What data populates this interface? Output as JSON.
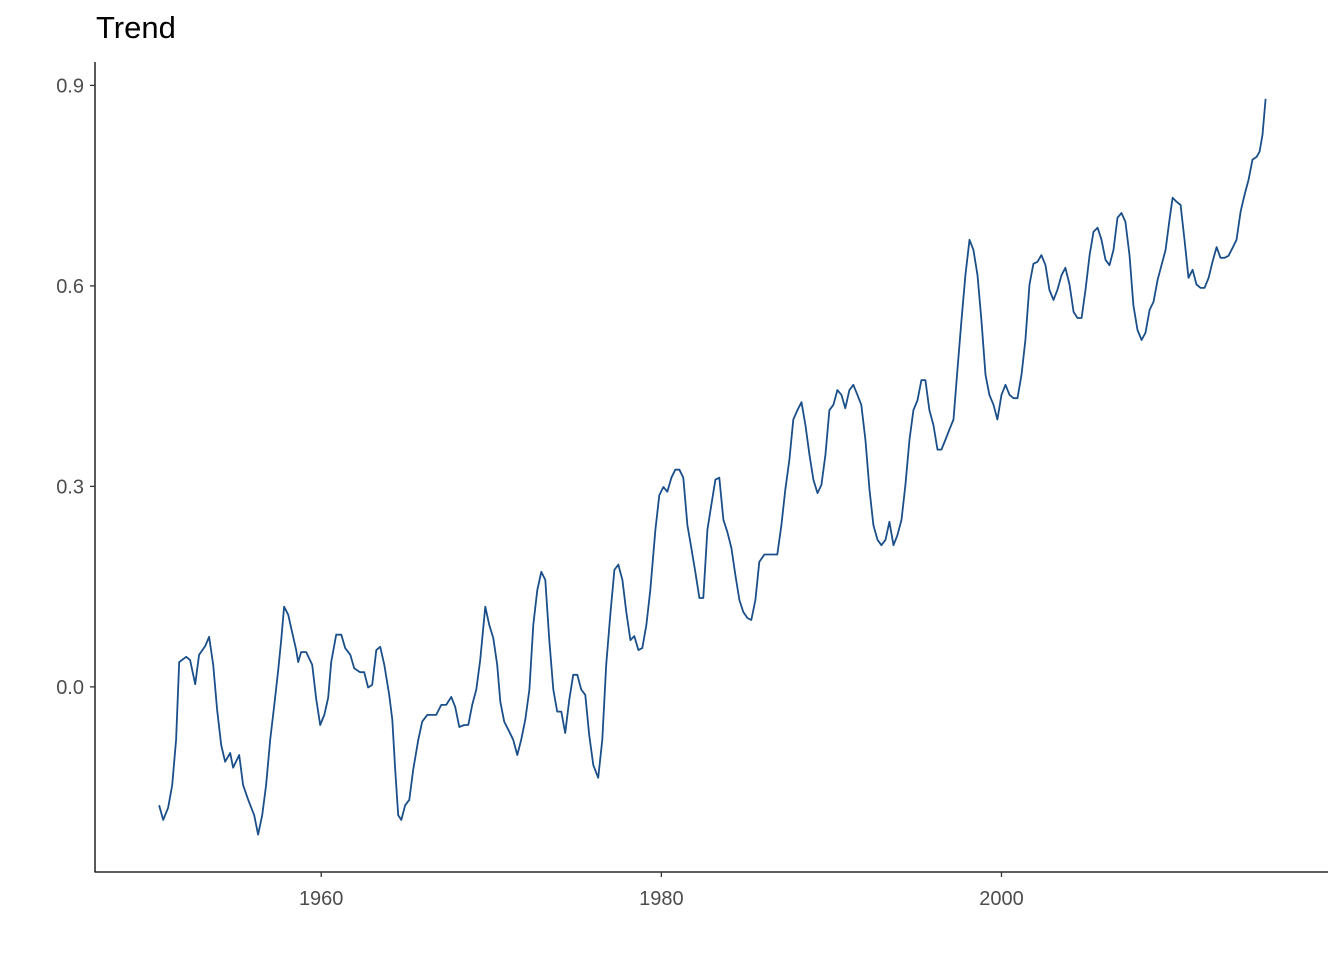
{
  "chart_data": {
    "type": "line",
    "title": "Trend",
    "xlabel": "",
    "ylabel": "",
    "xlim": [
      1946.7,
      2019.2
    ],
    "ylim": [
      -0.277,
      0.935
    ],
    "grid": false,
    "line_color": "#1a4f8a",
    "x_ticks": [
      1960,
      1980,
      2000
    ],
    "x_tick_labels": [
      "1960",
      "1980",
      "2000"
    ],
    "y_ticks": [
      0.0,
      0.3,
      0.6,
      0.9
    ],
    "y_tick_labels": [
      "0.0",
      "0.3",
      "0.6",
      "0.9"
    ],
    "series": [
      {
        "x": [
          1950.47,
          1950.71,
          1951.0,
          1951.24,
          1951.47,
          1951.65,
          1952.06,
          1952.29,
          1952.59,
          1952.82,
          1953.18,
          1953.41,
          1953.65,
          1953.88,
          1954.12,
          1954.35,
          1954.65,
          1954.82,
          1955.18,
          1955.41,
          1955.71,
          1956.06,
          1956.29,
          1956.53,
          1956.76,
          1957.0,
          1957.24,
          1957.47,
          1957.65,
          1957.82,
          1958.06,
          1958.29,
          1958.53,
          1958.65,
          1958.82,
          1959.12,
          1959.47,
          1959.71,
          1959.94,
          1960.18,
          1960.41,
          1960.59,
          1960.88,
          1961.18,
          1961.41,
          1961.71,
          1961.94,
          1962.29,
          1962.53,
          1962.76,
          1963.0,
          1963.24,
          1963.47,
          1963.71,
          1964.0,
          1964.18,
          1964.35,
          1964.53,
          1964.71,
          1964.94,
          1965.18,
          1965.41,
          1965.71,
          1965.94,
          1966.24,
          1966.47,
          1966.76,
          1967.06,
          1967.35,
          1967.65,
          1967.88,
          1968.12,
          1968.41,
          1968.65,
          1968.88,
          1969.12,
          1969.35,
          1969.65,
          1969.88,
          1970.12,
          1970.35,
          1970.53,
          1970.76,
          1971.06,
          1971.29,
          1971.53,
          1971.76,
          1972.0,
          1972.24,
          1972.47,
          1972.71,
          1972.94,
          1973.18,
          1973.41,
          1973.65,
          1973.88,
          1974.12,
          1974.35,
          1974.59,
          1974.82,
          1975.06,
          1975.29,
          1975.53,
          1975.76,
          1976.0,
          1976.29,
          1976.53,
          1976.76,
          1977.0,
          1977.24,
          1977.47,
          1977.71,
          1977.94,
          1978.18,
          1978.41,
          1978.65,
          1978.88,
          1979.12,
          1979.35,
          1979.65,
          1979.88,
          1980.12,
          1980.35,
          1980.59,
          1980.82,
          1981.06,
          1981.29,
          1981.53,
          1981.76,
          1982.0,
          1982.24,
          1982.47,
          1982.71,
          1982.94,
          1983.18,
          1983.41,
          1983.65,
          1983.88,
          1984.12,
          1984.35,
          1984.59,
          1984.82,
          1985.06,
          1985.29,
          1985.53,
          1985.76,
          1986.06,
          1986.35,
          1986.59,
          1986.82,
          1987.06,
          1987.29,
          1987.53,
          1987.76,
          1988.0,
          1988.24,
          1988.47,
          1988.71,
          1988.94,
          1989.18,
          1989.41,
          1989.65,
          1989.88,
          1990.12,
          1990.35,
          1990.59,
          1990.82,
          1991.06,
          1991.29,
          1991.53,
          1991.76,
          1992.0,
          1992.24,
          1992.47,
          1992.71,
          1992.94,
          1993.18,
          1993.41,
          1993.65,
          1993.88,
          1994.12,
          1994.35,
          1994.59,
          1994.82,
          1995.06,
          1995.29,
          1995.53,
          1995.76,
          1996.0,
          1996.24,
          1996.47,
          1996.71,
          1996.94,
          1997.18,
          1997.41,
          1997.65,
          1997.88,
          1998.12,
          1998.35,
          1998.59,
          1998.82,
          1999.06,
          1999.29,
          1999.53,
          1999.76,
          2000.0,
          2000.24,
          2000.47,
          2000.71,
          2000.94,
          2001.18,
          2001.41,
          2001.65,
          2001.88,
          2002.12,
          2002.35,
          2002.59,
          2002.82,
          2003.06,
          2003.29,
          2003.53,
          2003.76,
          2004.0,
          2004.24,
          2004.47,
          2004.71,
          2004.94,
          2005.18,
          2005.41,
          2005.65,
          2005.88,
          2006.12,
          2006.35,
          2006.59,
          2006.82,
          2007.06,
          2007.29,
          2007.53,
          2007.76,
          2008.0,
          2008.24,
          2008.47,
          2008.71,
          2008.94,
          2009.18,
          2009.41,
          2009.65,
          2009.88,
          2010.06,
          2010.29,
          2010.53,
          2010.76,
          2011.0,
          2011.24,
          2011.47,
          2011.71,
          2011.94,
          2012.18,
          2012.41,
          2012.65,
          2012.88,
          2013.12,
          2013.35,
          2013.59,
          2013.82,
          2014.06,
          2014.29,
          2014.53,
          2014.76,
          2015.0,
          2015.18,
          2015.35,
          2015.53
        ],
        "y": [
          -0.177,
          -0.199,
          -0.181,
          -0.147,
          -0.079,
          0.037,
          0.045,
          0.04,
          0.004,
          0.048,
          0.061,
          0.075,
          0.033,
          -0.034,
          -0.087,
          -0.112,
          -0.099,
          -0.121,
          -0.102,
          -0.147,
          -0.169,
          -0.192,
          -0.221,
          -0.192,
          -0.147,
          -0.079,
          -0.027,
          0.025,
          0.07,
          0.12,
          0.108,
          0.082,
          0.055,
          0.037,
          0.052,
          0.052,
          0.033,
          -0.019,
          -0.057,
          -0.042,
          -0.016,
          0.037,
          0.078,
          0.078,
          0.058,
          0.048,
          0.028,
          0.022,
          0.022,
          -0.001,
          0.003,
          0.055,
          0.06,
          0.033,
          -0.012,
          -0.049,
          -0.124,
          -0.192,
          -0.199,
          -0.177,
          -0.169,
          -0.124,
          -0.079,
          -0.052,
          -0.042,
          -0.042,
          -0.042,
          -0.027,
          -0.027,
          -0.015,
          -0.03,
          -0.06,
          -0.057,
          -0.057,
          -0.027,
          -0.004,
          0.04,
          0.12,
          0.093,
          0.073,
          0.033,
          -0.022,
          -0.052,
          -0.067,
          -0.079,
          -0.102,
          -0.079,
          -0.049,
          -0.004,
          0.093,
          0.145,
          0.172,
          0.16,
          0.07,
          -0.004,
          -0.037,
          -0.037,
          -0.069,
          -0.019,
          0.018,
          0.018,
          -0.004,
          -0.012,
          -0.072,
          -0.117,
          -0.136,
          -0.079,
          0.033,
          0.108,
          0.175,
          0.183,
          0.16,
          0.112,
          0.07,
          0.076,
          0.055,
          0.058,
          0.093,
          0.145,
          0.235,
          0.287,
          0.299,
          0.292,
          0.313,
          0.325,
          0.325,
          0.313,
          0.242,
          0.208,
          0.172,
          0.133,
          0.133,
          0.235,
          0.272,
          0.31,
          0.313,
          0.25,
          0.232,
          0.208,
          0.168,
          0.13,
          0.112,
          0.103,
          0.1,
          0.13,
          0.187,
          0.198,
          0.198,
          0.198,
          0.198,
          0.242,
          0.295,
          0.34,
          0.4,
          0.414,
          0.426,
          0.392,
          0.347,
          0.31,
          0.29,
          0.302,
          0.347,
          0.414,
          0.422,
          0.444,
          0.437,
          0.417,
          0.444,
          0.452,
          0.437,
          0.422,
          0.37,
          0.295,
          0.242,
          0.22,
          0.212,
          0.22,
          0.247,
          0.212,
          0.227,
          0.25,
          0.302,
          0.37,
          0.414,
          0.429,
          0.459,
          0.459,
          0.414,
          0.392,
          0.355,
          0.355,
          0.37,
          0.385,
          0.4,
          0.474,
          0.549,
          0.616,
          0.669,
          0.654,
          0.616,
          0.549,
          0.467,
          0.437,
          0.422,
          0.4,
          0.437,
          0.452,
          0.437,
          0.432,
          0.432,
          0.467,
          0.519,
          0.602,
          0.633,
          0.636,
          0.646,
          0.631,
          0.594,
          0.579,
          0.594,
          0.616,
          0.627,
          0.602,
          0.561,
          0.552,
          0.552,
          0.594,
          0.646,
          0.681,
          0.687,
          0.669,
          0.639,
          0.631,
          0.654,
          0.702,
          0.709,
          0.696,
          0.646,
          0.571,
          0.534,
          0.519,
          0.53,
          0.564,
          0.576,
          0.609,
          0.631,
          0.654,
          0.699,
          0.732,
          0.726,
          0.721,
          0.669,
          0.612,
          0.624,
          0.602,
          0.597,
          0.597,
          0.612,
          0.636,
          0.658,
          0.642,
          0.642,
          0.645,
          0.657,
          0.669,
          0.711,
          0.736,
          0.759,
          0.789,
          0.793,
          0.801,
          0.826,
          0.88
        ]
      }
    ]
  }
}
